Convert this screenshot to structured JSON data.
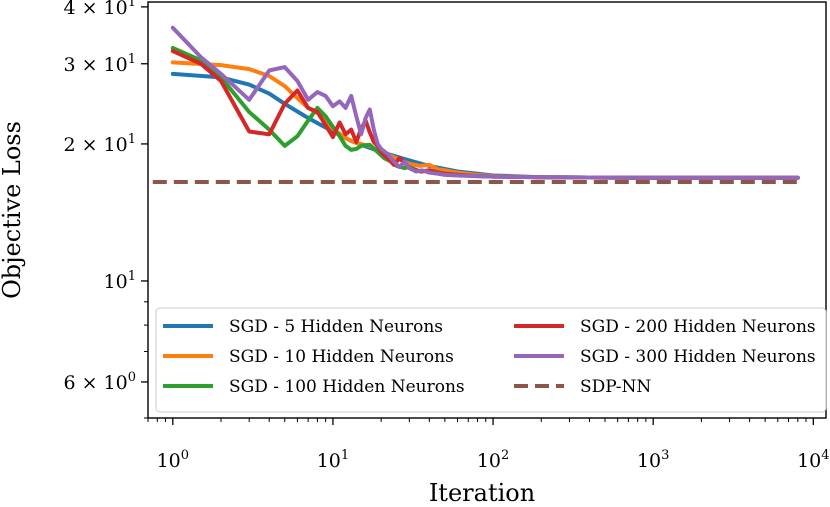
{
  "chart_data": {
    "type": "line",
    "xlabel": "Iteration",
    "ylabel": "Objective Loss",
    "x_scale": "log",
    "y_scale": "log",
    "xlim": [
      0.7,
      12000
    ],
    "ylim": [
      5.0,
      41.0
    ],
    "x_ticks": [
      {
        "value": 1,
        "label": "10",
        "exp": "0"
      },
      {
        "value": 10,
        "label": "10",
        "exp": "1"
      },
      {
        "value": 100,
        "label": "10",
        "exp": "2"
      },
      {
        "value": 1000,
        "label": "10",
        "exp": "3"
      },
      {
        "value": 10000,
        "label": "10",
        "exp": "4"
      }
    ],
    "y_ticks": [
      {
        "value": 6,
        "label": "6 × 10",
        "exp": "0"
      },
      {
        "value": 10,
        "label": "10",
        "exp": "1"
      },
      {
        "value": 20,
        "label": "2 × 10",
        "exp": "1"
      },
      {
        "value": 30,
        "label": "3 × 10",
        "exp": "1"
      },
      {
        "value": 40,
        "label": "4 × 10",
        "exp": "1"
      }
    ],
    "grid": false,
    "legend_position": "lower-center",
    "series": [
      {
        "name": "SGD - 5 Hidden Neurons",
        "color": "#1f77b4",
        "dashed": false,
        "points": [
          [
            1,
            28.5
          ],
          [
            2,
            28.0
          ],
          [
            3,
            27.0
          ],
          [
            4,
            25.8
          ],
          [
            5,
            24.5
          ],
          [
            7,
            22.8
          ],
          [
            10,
            21.3
          ],
          [
            13,
            20.3
          ],
          [
            17,
            19.6
          ],
          [
            22,
            19.0
          ],
          [
            30,
            18.4
          ],
          [
            40,
            17.9
          ],
          [
            60,
            17.4
          ],
          [
            100,
            17.05
          ],
          [
            200,
            16.9
          ],
          [
            1000,
            16.85
          ],
          [
            8000,
            16.85
          ]
        ]
      },
      {
        "name": "SGD - 10 Hidden Neurons",
        "color": "#ff7f0e",
        "dashed": false,
        "points": [
          [
            1,
            30.2
          ],
          [
            2,
            29.8
          ],
          [
            3,
            29.2
          ],
          [
            4,
            28.2
          ],
          [
            5,
            26.8
          ],
          [
            6,
            25.2
          ],
          [
            7,
            24.0
          ],
          [
            8,
            23.4
          ],
          [
            9,
            22.6
          ],
          [
            10,
            21.6
          ],
          [
            12,
            20.6
          ],
          [
            14,
            20.1
          ],
          [
            17,
            19.8
          ],
          [
            20,
            19.2
          ],
          [
            25,
            18.6
          ],
          [
            30,
            18.1
          ],
          [
            35,
            17.9
          ],
          [
            40,
            18.0
          ],
          [
            45,
            17.6
          ],
          [
            50,
            17.5
          ],
          [
            60,
            17.3
          ],
          [
            80,
            17.1
          ],
          [
            100,
            17.0
          ],
          [
            200,
            16.9
          ],
          [
            1000,
            16.85
          ],
          [
            8000,
            16.85
          ]
        ]
      },
      {
        "name": "SGD - 100 Hidden Neurons",
        "color": "#2ca02c",
        "dashed": false,
        "points": [
          [
            1,
            32.5
          ],
          [
            1.5,
            30.5
          ],
          [
            2,
            28.0
          ],
          [
            3,
            23.5
          ],
          [
            4,
            21.5
          ],
          [
            5,
            19.8
          ],
          [
            6,
            20.8
          ],
          [
            7,
            22.5
          ],
          [
            8,
            24.0
          ],
          [
            9,
            23.0
          ],
          [
            10,
            21.8
          ],
          [
            11,
            20.8
          ],
          [
            12,
            19.8
          ],
          [
            13,
            19.4
          ],
          [
            14,
            19.5
          ],
          [
            15,
            19.8
          ],
          [
            17,
            19.9
          ],
          [
            19,
            19.2
          ],
          [
            21,
            18.6
          ],
          [
            23,
            18.3
          ],
          [
            25,
            17.9
          ],
          [
            28,
            17.7
          ],
          [
            30,
            17.8
          ],
          [
            35,
            17.4
          ],
          [
            40,
            17.5
          ],
          [
            50,
            17.2
          ],
          [
            70,
            17.05
          ],
          [
            100,
            16.95
          ],
          [
            200,
            16.9
          ],
          [
            1000,
            16.85
          ],
          [
            8000,
            16.85
          ]
        ]
      },
      {
        "name": "SGD - 200 Hidden Neurons",
        "color": "#d62728",
        "dashed": false,
        "points": [
          [
            1,
            32.0
          ],
          [
            1.5,
            30.0
          ],
          [
            2,
            27.5
          ],
          [
            3,
            21.3
          ],
          [
            4,
            21.0
          ],
          [
            5,
            24.5
          ],
          [
            6,
            26.2
          ],
          [
            7,
            24.0
          ],
          [
            8,
            23.5
          ],
          [
            9,
            22.0
          ],
          [
            10,
            20.7
          ],
          [
            11,
            22.3
          ],
          [
            12,
            21.0
          ],
          [
            13,
            21.5
          ],
          [
            14,
            20.2
          ],
          [
            15,
            21.6
          ],
          [
            16,
            22.5
          ],
          [
            17,
            21.2
          ],
          [
            18,
            20.2
          ],
          [
            19,
            19.8
          ],
          [
            20,
            19.2
          ],
          [
            22,
            18.6
          ],
          [
            24,
            18.0
          ],
          [
            26,
            18.6
          ],
          [
            28,
            18.2
          ],
          [
            30,
            17.7
          ],
          [
            33,
            17.5
          ],
          [
            36,
            17.4
          ],
          [
            40,
            17.5
          ],
          [
            45,
            17.3
          ],
          [
            50,
            17.2
          ],
          [
            60,
            17.1
          ],
          [
            80,
            17.0
          ],
          [
            100,
            16.95
          ],
          [
            200,
            16.9
          ],
          [
            1000,
            16.85
          ],
          [
            8000,
            16.85
          ]
        ]
      },
      {
        "name": "SGD - 300 Hidden Neurons",
        "color": "#9467bd",
        "dashed": false,
        "points": [
          [
            1,
            36.0
          ],
          [
            1.5,
            31.0
          ],
          [
            2,
            28.5
          ],
          [
            3,
            25.0
          ],
          [
            4,
            29.0
          ],
          [
            5,
            29.5
          ],
          [
            6,
            27.5
          ],
          [
            7,
            25.0
          ],
          [
            8,
            26.0
          ],
          [
            9,
            25.5
          ],
          [
            10,
            24.2
          ],
          [
            11,
            24.8
          ],
          [
            12,
            24.0
          ],
          [
            13,
            25.5
          ],
          [
            14,
            23.0
          ],
          [
            15,
            21.0
          ],
          [
            16,
            22.8
          ],
          [
            17,
            23.8
          ],
          [
            18,
            21.5
          ],
          [
            19,
            20.0
          ],
          [
            20,
            19.5
          ],
          [
            22,
            19.0
          ],
          [
            24,
            18.3
          ],
          [
            26,
            17.8
          ],
          [
            28,
            18.3
          ],
          [
            30,
            17.7
          ],
          [
            33,
            17.4
          ],
          [
            36,
            17.5
          ],
          [
            40,
            17.3
          ],
          [
            45,
            17.2
          ],
          [
            50,
            17.1
          ],
          [
            60,
            17.05
          ],
          [
            80,
            17.0
          ],
          [
            100,
            16.95
          ],
          [
            200,
            16.9
          ],
          [
            1000,
            16.85
          ],
          [
            8000,
            16.85
          ]
        ]
      },
      {
        "name": "SDP-NN",
        "color": "#8c564b",
        "dashed": true,
        "points": [
          [
            0.75,
            16.5
          ],
          [
            8000,
            16.5
          ]
        ]
      }
    ]
  }
}
